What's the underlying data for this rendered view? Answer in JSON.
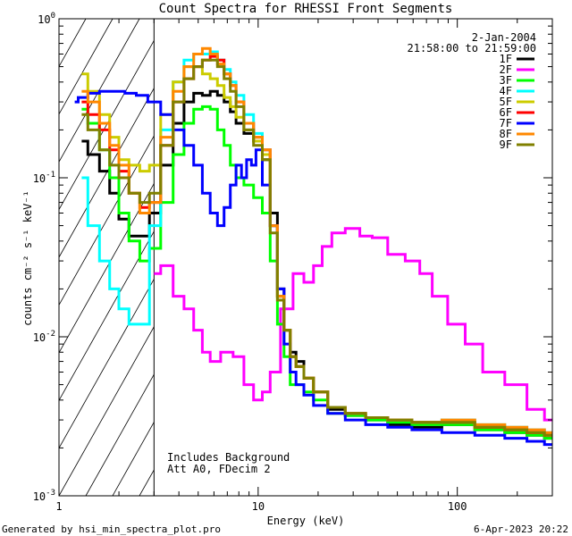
{
  "chart_data": {
    "type": "line",
    "title": "Count Spectra for RHESSI Front Segments",
    "xlabel": "Energy (keV)",
    "ylabel": "counts cm⁻² s⁻¹ keV⁻¹",
    "xscale": "log",
    "yscale": "log",
    "xlim": [
      1.0,
      300.0
    ],
    "ylim": [
      0.001,
      1.0
    ],
    "xticks": [
      {
        "v": 1,
        "label": "1"
      },
      {
        "v": 10,
        "label": "10"
      },
      {
        "v": 100,
        "label": "100"
      }
    ],
    "yticks": [
      {
        "v": 0.001,
        "m": "10",
        "e": "-3"
      },
      {
        "v": 0.01,
        "m": "10",
        "e": "-2"
      },
      {
        "v": 0.1,
        "m": "10",
        "e": "-1"
      },
      {
        "v": 1,
        "m": "10",
        "e": "0"
      }
    ],
    "attenuator_cutoff_kev": 3.0,
    "date": "2-Jan-2004",
    "time_range": "21:58:00 to 21:59:00",
    "annotation_lines": [
      "Includes Background",
      "Att A0, FDecim 2"
    ],
    "footer_left": "Generated by hsi_min_spectra_plot.pro",
    "footer_right": "6-Apr-2023 20:22",
    "series": [
      {
        "name": "1F",
        "color": "#000000",
        "x": [
          1.3,
          1.5,
          1.7,
          1.9,
          2.1,
          2.4,
          2.7,
          3.0,
          3.5,
          4.0,
          4.5,
          5.0,
          5.5,
          6.0,
          6.5,
          7.0,
          7.5,
          8.0,
          9.0,
          10.0,
          11.0,
          12.0,
          13.0,
          14.0,
          15.0,
          16.0,
          18.0,
          20.0,
          25.0,
          30.0,
          40.0,
          50.0,
          70.0,
          100.0,
          150.0,
          200.0,
          250.0,
          300.0
        ],
        "y": [
          0.17,
          0.14,
          0.11,
          0.08,
          0.055,
          0.043,
          0.043,
          0.06,
          0.12,
          0.22,
          0.3,
          0.34,
          0.33,
          0.35,
          0.33,
          0.3,
          0.26,
          0.22,
          0.19,
          0.17,
          0.13,
          0.06,
          0.02,
          0.011,
          0.008,
          0.007,
          0.0055,
          0.0045,
          0.0035,
          0.0032,
          0.003,
          0.0028,
          0.0027,
          0.0028,
          0.0026,
          0.0025,
          0.0024,
          0.0023
        ]
      },
      {
        "name": "2F",
        "color": "#ff00ff",
        "x": [
          3.0,
          3.5,
          4.0,
          4.5,
          5.0,
          5.5,
          6.0,
          7.0,
          8.0,
          9.0,
          10.0,
          11.0,
          12.0,
          14.0,
          16.0,
          18.0,
          20.0,
          22.0,
          25.0,
          30.0,
          35.0,
          40.0,
          50.0,
          60.0,
          70.0,
          80.0,
          100.0,
          120.0,
          150.0,
          200.0,
          250.0,
          300.0
        ],
        "y": [
          0.025,
          0.028,
          0.018,
          0.015,
          0.011,
          0.008,
          0.007,
          0.008,
          0.0075,
          0.005,
          0.004,
          0.0045,
          0.006,
          0.015,
          0.025,
          0.022,
          0.028,
          0.037,
          0.045,
          0.048,
          0.043,
          0.042,
          0.033,
          0.03,
          0.025,
          0.018,
          0.012,
          0.009,
          0.006,
          0.005,
          0.0035,
          0.003
        ]
      },
      {
        "name": "3F",
        "color": "#00ff00",
        "x": [
          1.3,
          1.5,
          1.7,
          1.9,
          2.1,
          2.4,
          2.7,
          3.0,
          3.5,
          4.0,
          4.5,
          5.0,
          5.5,
          6.0,
          6.5,
          7.0,
          7.5,
          8.0,
          9.0,
          10.0,
          11.0,
          12.0,
          13.0,
          14.0,
          15.0,
          16.0,
          18.0,
          20.0,
          25.0,
          30.0,
          40.0,
          50.0,
          70.0,
          100.0,
          150.0,
          200.0,
          250.0,
          300.0
        ],
        "y": [
          0.27,
          0.22,
          0.15,
          0.1,
          0.06,
          0.04,
          0.03,
          0.036,
          0.07,
          0.14,
          0.22,
          0.27,
          0.28,
          0.27,
          0.2,
          0.16,
          0.12,
          0.1,
          0.09,
          0.075,
          0.06,
          0.03,
          0.012,
          0.0075,
          0.005,
          0.005,
          0.0045,
          0.004,
          0.0033,
          0.0032,
          0.003,
          0.0029,
          0.0028,
          0.0028,
          0.0026,
          0.0025,
          0.0024,
          0.0023
        ]
      },
      {
        "name": "4F",
        "color": "#00ffff",
        "x": [
          1.3,
          1.5,
          1.7,
          1.9,
          2.1,
          2.4,
          2.7,
          3.0,
          3.5,
          4.0,
          4.5,
          5.0,
          5.5,
          6.0,
          6.5,
          7.0,
          7.5,
          8.0,
          9.0,
          10.0,
          11.0,
          12.0,
          13.0,
          14.0,
          15.0,
          16.0,
          18.0,
          20.0,
          25.0,
          30.0,
          40.0,
          50.0,
          70.0,
          100.0,
          150.0,
          200.0,
          250.0,
          300.0
        ],
        "y": [
          0.1,
          0.05,
          0.03,
          0.02,
          0.015,
          0.012,
          0.012,
          0.05,
          0.2,
          0.4,
          0.55,
          0.6,
          0.6,
          0.62,
          0.55,
          0.48,
          0.4,
          0.33,
          0.25,
          0.19,
          0.15,
          0.05,
          0.018,
          0.011,
          0.0075,
          0.0065,
          0.0055,
          0.0045,
          0.0036,
          0.0033,
          0.0031,
          0.003,
          0.0029,
          0.003,
          0.0028,
          0.0027,
          0.0026,
          0.0025
        ]
      },
      {
        "name": "5F",
        "color": "#cccc00",
        "x": [
          1.3,
          1.5,
          1.7,
          1.9,
          2.1,
          2.4,
          2.7,
          3.0,
          3.5,
          4.0,
          4.5,
          5.0,
          5.5,
          6.0,
          6.5,
          7.0,
          7.5,
          8.0,
          9.0,
          10.0,
          11.0,
          12.0,
          13.0,
          14.0,
          15.0,
          16.0,
          18.0,
          20.0,
          25.0,
          30.0,
          40.0,
          50.0,
          70.0,
          100.0,
          150.0,
          200.0,
          250.0,
          300.0
        ],
        "y": [
          0.45,
          0.35,
          0.25,
          0.18,
          0.13,
          0.12,
          0.11,
          0.12,
          0.25,
          0.4,
          0.5,
          0.5,
          0.45,
          0.42,
          0.38,
          0.32,
          0.28,
          0.24,
          0.2,
          0.17,
          0.14,
          0.05,
          0.018,
          0.011,
          0.0075,
          0.0065,
          0.0055,
          0.0045,
          0.0036,
          0.0033,
          0.0031,
          0.003,
          0.0029,
          0.0029,
          0.0027,
          0.0026,
          0.0025,
          0.0024
        ]
      },
      {
        "name": "6F",
        "color": "#ff0000",
        "x": [
          1.3,
          1.5,
          1.7,
          1.9,
          2.1,
          2.4,
          2.7,
          3.0,
          3.5,
          4.0,
          4.5,
          5.0,
          5.5,
          6.0,
          6.5,
          7.0,
          7.5,
          8.0,
          9.0,
          10.0,
          11.0,
          12.0,
          13.0,
          14.0,
          15.0,
          16.0,
          18.0,
          20.0,
          25.0,
          30.0,
          40.0,
          50.0,
          70.0,
          100.0,
          150.0,
          200.0,
          250.0,
          300.0
        ],
        "y": [
          0.3,
          0.25,
          0.2,
          0.15,
          0.11,
          0.08,
          0.065,
          0.07,
          0.16,
          0.3,
          0.42,
          0.5,
          0.55,
          0.58,
          0.55,
          0.45,
          0.38,
          0.3,
          0.22,
          0.18,
          0.15,
          0.05,
          0.018,
          0.011,
          0.0075,
          0.0065,
          0.0055,
          0.0045,
          0.0036,
          0.0033,
          0.0031,
          0.003,
          0.0029,
          0.0029,
          0.0027,
          0.0026,
          0.0025,
          0.0024
        ]
      },
      {
        "name": "7F",
        "color": "#0000ff",
        "x": [
          1.2,
          1.3,
          1.5,
          1.7,
          2.0,
          2.3,
          2.6,
          3.0,
          3.5,
          4.0,
          4.5,
          5.0,
          5.5,
          6.0,
          6.5,
          7.0,
          7.5,
          8.0,
          8.5,
          9.0,
          9.5,
          10.0,
          11.0,
          12.0,
          13.0,
          14.0,
          15.0,
          16.0,
          18.0,
          20.0,
          25.0,
          30.0,
          40.0,
          50.0,
          70.0,
          100.0,
          150.0,
          200.0,
          250.0,
          300.0
        ],
        "y": [
          0.3,
          0.32,
          0.34,
          0.35,
          0.35,
          0.34,
          0.33,
          0.3,
          0.25,
          0.2,
          0.16,
          0.12,
          0.08,
          0.06,
          0.05,
          0.065,
          0.09,
          0.12,
          0.1,
          0.13,
          0.12,
          0.15,
          0.09,
          0.05,
          0.02,
          0.009,
          0.006,
          0.005,
          0.0043,
          0.0037,
          0.0033,
          0.003,
          0.0028,
          0.0027,
          0.0026,
          0.0025,
          0.0024,
          0.0023,
          0.0022,
          0.0021
        ]
      },
      {
        "name": "8F",
        "color": "#ff8800",
        "x": [
          1.3,
          1.5,
          1.7,
          1.9,
          2.1,
          2.4,
          2.7,
          3.0,
          3.5,
          4.0,
          4.5,
          5.0,
          5.5,
          6.0,
          6.5,
          7.0,
          7.5,
          8.0,
          9.0,
          10.0,
          11.0,
          12.0,
          13.0,
          14.0,
          15.0,
          16.0,
          18.0,
          20.0,
          25.0,
          30.0,
          40.0,
          50.0,
          70.0,
          100.0,
          150.0,
          200.0,
          250.0,
          300.0
        ],
        "y": [
          0.35,
          0.3,
          0.22,
          0.16,
          0.12,
          0.08,
          0.06,
          0.07,
          0.18,
          0.35,
          0.5,
          0.6,
          0.65,
          0.6,
          0.52,
          0.45,
          0.38,
          0.3,
          0.22,
          0.18,
          0.15,
          0.05,
          0.018,
          0.011,
          0.0075,
          0.0065,
          0.0055,
          0.0045,
          0.0036,
          0.0033,
          0.0031,
          0.003,
          0.0029,
          0.003,
          0.0028,
          0.0027,
          0.0026,
          0.0025
        ]
      },
      {
        "name": "9F",
        "color": "#808000",
        "x": [
          1.3,
          1.5,
          1.7,
          1.9,
          2.1,
          2.4,
          2.7,
          3.0,
          3.5,
          4.0,
          4.5,
          5.0,
          5.5,
          6.0,
          6.5,
          7.0,
          7.5,
          8.0,
          9.0,
          10.0,
          11.0,
          12.0,
          13.0,
          14.0,
          15.0,
          16.0,
          18.0,
          20.0,
          25.0,
          30.0,
          40.0,
          50.0,
          70.0,
          100.0,
          150.0,
          200.0,
          250.0,
          300.0
        ],
        "y": [
          0.25,
          0.2,
          0.15,
          0.12,
          0.1,
          0.08,
          0.07,
          0.08,
          0.16,
          0.3,
          0.42,
          0.5,
          0.55,
          0.55,
          0.5,
          0.42,
          0.35,
          0.28,
          0.2,
          0.16,
          0.13,
          0.045,
          0.017,
          0.011,
          0.0075,
          0.0065,
          0.0055,
          0.0045,
          0.0036,
          0.0033,
          0.0031,
          0.003,
          0.0029,
          0.0029,
          0.0027,
          0.0026,
          0.0025,
          0.0024
        ]
      }
    ]
  }
}
